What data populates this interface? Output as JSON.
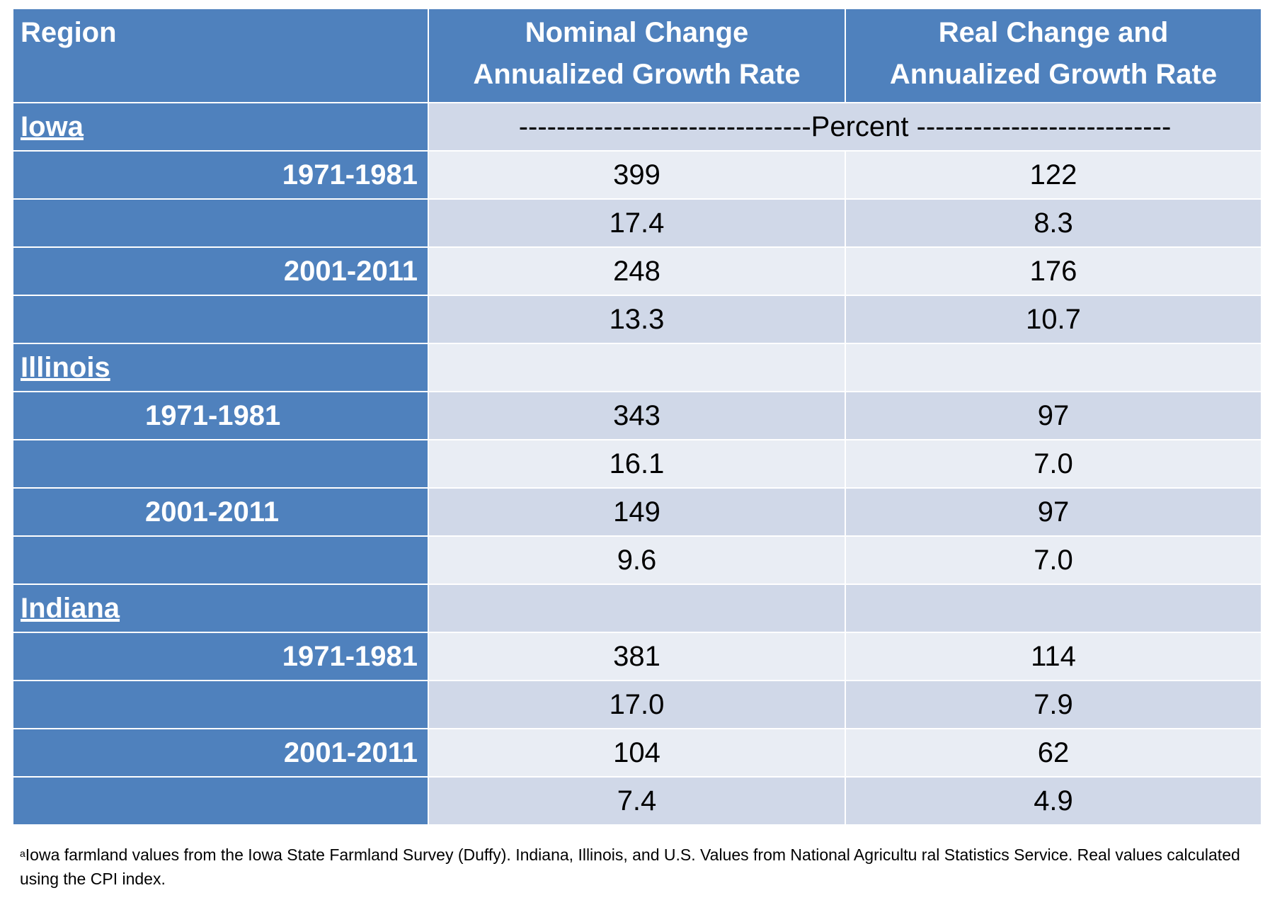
{
  "header": {
    "region": "Region",
    "nominal": [
      "Nominal Change",
      "Annualized Growth Rate"
    ],
    "real": [
      "Real Change and",
      "Annualized Growth Rate"
    ]
  },
  "units_row": "-------------------------------Percent  ---------------------------",
  "sections": [
    {
      "region": "Iowa",
      "rows": [
        {
          "period": "1971-1981",
          "nominal": "399",
          "real": "122"
        },
        {
          "period": "",
          "nominal": "17.4",
          "real": "8.3"
        },
        {
          "period": "2001-2011",
          "nominal": "248",
          "real": "176"
        },
        {
          "period": "",
          "nominal": "13.3",
          "real": "10.7"
        }
      ]
    },
    {
      "region": "Illinois",
      "rows": [
        {
          "period": "1971-1981",
          "nominal": "343",
          "real": "97"
        },
        {
          "period": "",
          "nominal": "16.1",
          "real": "7.0"
        },
        {
          "period": "2001-2011",
          "nominal": "149",
          "real": "97"
        },
        {
          "period": "",
          "nominal": "9.6",
          "real": "7.0"
        }
      ]
    },
    {
      "region": "Indiana",
      "rows": [
        {
          "period": "1971-1981",
          "nominal": "381",
          "real": "114"
        },
        {
          "period": "",
          "nominal": "17.0",
          "real": "7.9"
        },
        {
          "period": "2001-2011",
          "nominal": "104",
          "real": "62"
        },
        {
          "period": "",
          "nominal": "7.4",
          "real": "4.9"
        }
      ]
    }
  ],
  "footnote": {
    "marker": "a",
    "text": "Iowa farmland values from the Iowa State Farmland Survey (Duffy).  Indiana, Illinois, and U.S. Values from National  Agricultu ral Statistics Service.  Real values calculated using the CPI index."
  }
}
